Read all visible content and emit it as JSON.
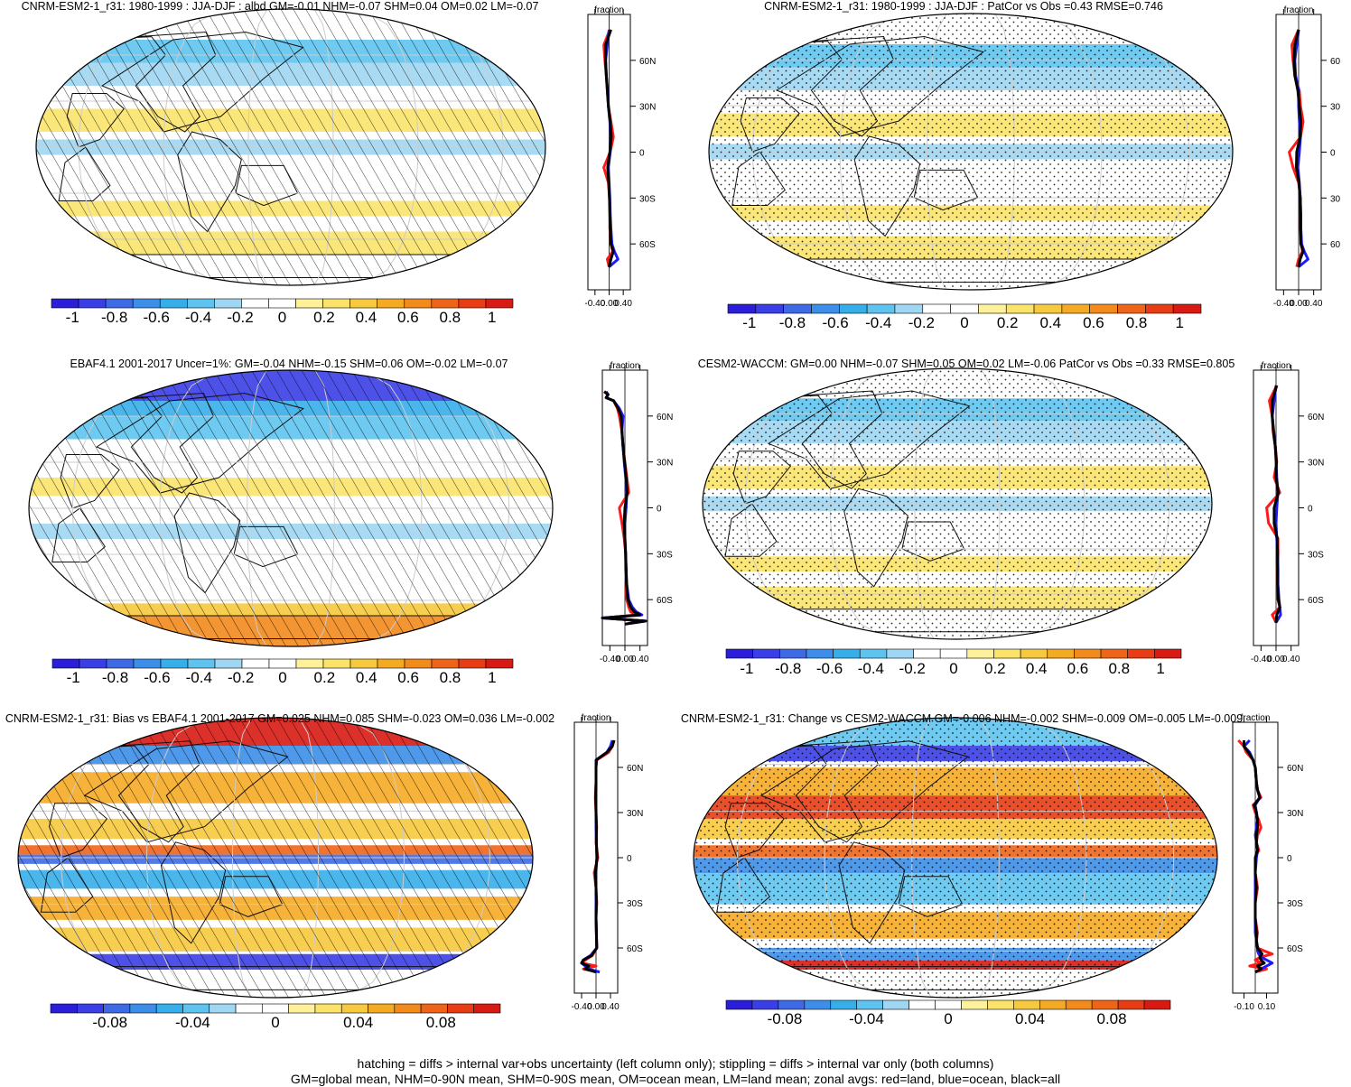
{
  "figure": {
    "footer_line1": "hatching = diffs > internal var+obs uncertainty (left column only); stippling = diffs > internal var only (both columns)",
    "footer_line2": "GM=global mean, NHM=0-90N mean, SHM=0-90S mean, OM=ocean mean, LM=land mean; zonal avgs: red=land, blue=ocean, black=all"
  },
  "colors": {
    "land": "#ff1a1a",
    "ocean": "#1a1aff",
    "all": "#000000",
    "colormap": [
      "#2a1ed8",
      "#3a3ee6",
      "#3f6ae6",
      "#3c8ee8",
      "#36aeea",
      "#5ec4ef",
      "#9fd7f2",
      "#ffffff",
      "#ffffff",
      "#fff09a",
      "#fbe36a",
      "#f7c93e",
      "#f5aa23",
      "#f28a1c",
      "#ee6418",
      "#e83c14",
      "#d81a14"
    ]
  },
  "chart_data": [
    {
      "type": "map+zonal",
      "id": "p1",
      "title": "CNRM-ESM2-1_r31: 1980-1999 : JJA-DJF : albd GM=-0.01 NHM=-0.07 SHM=0.04 OM=0.02 LM=-0.07",
      "pattern": "hatch",
      "map_style": "weak",
      "zonal_label": "fraction",
      "zonal_xlim": [
        -0.6,
        0.6
      ],
      "zonal_xticks": [
        "-0.40",
        "0.00",
        "0.40"
      ],
      "lat_ticks": [
        "60N",
        "30N",
        "0",
        "30S",
        "60S"
      ],
      "zonal": {
        "lat": [
          80,
          70,
          60,
          50,
          40,
          30,
          20,
          10,
          0,
          -10,
          -20,
          -30,
          -40,
          -50,
          -60,
          -65,
          -70,
          -75
        ],
        "land": [
          0.02,
          -0.15,
          -0.12,
          -0.08,
          -0.05,
          -0.02,
          0.05,
          0.12,
          0.03,
          -0.15,
          -0.02,
          0.01,
          0.02,
          0.02,
          0.05,
          0.1,
          -0.05,
          0.0
        ],
        "ocean": [
          0.0,
          -0.05,
          -0.1,
          -0.08,
          -0.04,
          -0.02,
          0.02,
          0.05,
          0.03,
          -0.02,
          0.0,
          0.02,
          0.03,
          0.05,
          0.08,
          0.15,
          0.25,
          0.0
        ],
        "all": [
          0.05,
          -0.1,
          -0.1,
          -0.08,
          -0.05,
          -0.02,
          0.03,
          0.06,
          0.02,
          -0.04,
          -0.01,
          0.01,
          0.02,
          0.03,
          0.05,
          0.12,
          0.05,
          0.0
        ]
      },
      "colorbar_ticks": [
        "-1",
        "-0.8",
        "-0.6",
        "-0.4",
        "-0.2",
        "0",
        "0.2",
        "0.4",
        "0.6",
        "0.8",
        "1"
      ]
    },
    {
      "type": "map+zonal",
      "id": "p2",
      "title": "CNRM-ESM2-1_r31: 1980-1999 : JJA-DJF : PatCor vs Obs =0.43 RMSE=0.746",
      "pattern": "stipple",
      "map_style": "weak",
      "zonal_label": "fraction",
      "zonal_xlim": [
        -0.6,
        0.6
      ],
      "zonal_xticks": [
        "-0.40",
        "0.00",
        "0.40"
      ],
      "lat_ticks": [
        "60",
        "30",
        "0",
        "30",
        "60"
      ],
      "zonal": {
        "lat": [
          80,
          70,
          60,
          50,
          40,
          30,
          20,
          10,
          0,
          -10,
          -20,
          -30,
          -40,
          -50,
          -60,
          -65,
          -70,
          -75
        ],
        "land": [
          0.0,
          -0.18,
          -0.15,
          -0.1,
          0.02,
          0.05,
          0.12,
          0.05,
          -0.25,
          -0.15,
          0.0,
          0.05,
          0.05,
          0.05,
          0.08,
          0.1,
          0.0,
          -0.05
        ],
        "ocean": [
          0.0,
          -0.05,
          -0.1,
          -0.08,
          0.0,
          0.0,
          0.02,
          0.05,
          0.02,
          -0.02,
          0.02,
          0.04,
          0.06,
          0.06,
          0.08,
          0.15,
          0.25,
          0.0
        ],
        "all": [
          0.0,
          -0.1,
          -0.12,
          -0.1,
          -0.02,
          0.02,
          0.06,
          0.04,
          -0.05,
          -0.06,
          0.01,
          0.04,
          0.05,
          0.05,
          0.06,
          0.12,
          0.04,
          0.0
        ]
      },
      "colorbar_ticks": [
        "-1",
        "-0.8",
        "-0.6",
        "-0.4",
        "-0.2",
        "0",
        "0.2",
        "0.4",
        "0.6",
        "0.8",
        "1"
      ]
    },
    {
      "type": "map+zonal",
      "id": "p3",
      "title": "EBAF4.1 2001-2017 Uncer=1%: GM=-0.04 NHM=-0.15 SHM=0.06 OM=-0.02 LM=-0.07",
      "pattern": "hatch",
      "map_style": "obs",
      "zonal_label": "fraction",
      "zonal_xlim": [
        -0.6,
        0.6
      ],
      "zonal_xticks": [
        "-0.40",
        "0.00",
        "0.40"
      ],
      "lat_ticks": [
        "60N",
        "30N",
        "0",
        "30S",
        "60S"
      ],
      "zonal": {
        "lat": [
          76,
          74,
          72,
          70,
          65,
          60,
          50,
          40,
          30,
          20,
          10,
          0,
          -10,
          -20,
          -30,
          -40,
          -50,
          -60,
          -65,
          -68,
          -70,
          -72,
          -74,
          -76
        ],
        "land": [
          -0.55,
          -0.45,
          -0.5,
          -0.3,
          -0.2,
          -0.15,
          -0.08,
          -0.05,
          0.0,
          0.05,
          0.1,
          -0.15,
          -0.08,
          -0.02,
          0.02,
          0.02,
          0.03,
          0.05,
          0.1,
          0.15,
          0.3,
          -0.55,
          0.5,
          0.0
        ],
        "ocean": [
          -0.5,
          -0.45,
          -0.5,
          -0.3,
          -0.15,
          -0.05,
          -0.08,
          -0.05,
          -0.02,
          0.02,
          0.05,
          0.03,
          0.0,
          0.0,
          0.02,
          0.03,
          0.05,
          0.1,
          0.2,
          0.3,
          0.45,
          -0.6,
          0.55,
          0.0
        ],
        "all": [
          -0.55,
          -0.45,
          -0.5,
          -0.3,
          -0.18,
          -0.1,
          -0.08,
          -0.05,
          -0.01,
          0.03,
          0.06,
          0.0,
          -0.02,
          0.0,
          0.02,
          0.03,
          0.04,
          0.08,
          0.15,
          0.25,
          0.4,
          -0.6,
          0.55,
          0.0
        ]
      },
      "colorbar_ticks": [
        "-1",
        "-0.8",
        "-0.6",
        "-0.4",
        "-0.2",
        "0",
        "0.2",
        "0.4",
        "0.6",
        "0.8",
        "1"
      ]
    },
    {
      "type": "map+zonal",
      "id": "p4",
      "title": "CESM2-WACCM: GM=0.00 NHM=-0.07 SHM=0.05 OM=0.02 LM=-0.06 PatCor vs Obs =0.33 RMSE=0.805",
      "pattern": "stipple",
      "map_style": "weak",
      "zonal_label": "fraction",
      "zonal_xlim": [
        -0.6,
        0.6
      ],
      "zonal_xticks": [
        "-0.40",
        "0.00",
        "0.40"
      ],
      "lat_ticks": [
        "60N",
        "30N",
        "0",
        "30S",
        "60S"
      ],
      "zonal": {
        "lat": [
          80,
          70,
          60,
          50,
          40,
          30,
          20,
          10,
          0,
          -10,
          -20,
          -30,
          -40,
          -50,
          -60,
          -65,
          -70,
          -75
        ],
        "land": [
          0.02,
          -0.18,
          -0.1,
          -0.08,
          -0.02,
          0.02,
          -0.05,
          0.1,
          -0.25,
          -0.2,
          0.05,
          0.05,
          0.03,
          0.03,
          0.05,
          0.1,
          -0.1,
          0.0
        ],
        "ocean": [
          0.0,
          -0.05,
          -0.1,
          -0.06,
          -0.02,
          0.0,
          0.02,
          0.05,
          0.02,
          0.0,
          0.02,
          0.04,
          0.05,
          0.05,
          0.08,
          0.1,
          0.12,
          0.0
        ],
        "all": [
          0.02,
          -0.1,
          -0.1,
          -0.07,
          -0.02,
          0.01,
          0.0,
          0.06,
          -0.05,
          -0.05,
          0.03,
          0.04,
          0.04,
          0.04,
          0.06,
          0.1,
          0.02,
          0.0
        ]
      },
      "colorbar_ticks": [
        "-1",
        "-0.8",
        "-0.6",
        "-0.4",
        "-0.2",
        "0",
        "0.2",
        "0.4",
        "0.6",
        "0.8",
        "1"
      ]
    },
    {
      "type": "map+zonal",
      "id": "p5",
      "title": "CNRM-ESM2-1_r31: Bias vs EBAF4.1 2001-2017 GM=0.025 NHM=0.085 SHM=-0.023 OM=0.036 LM=-0.002",
      "pattern": "hatch",
      "map_style": "bias",
      "zonal_label": "fraction",
      "zonal_xlim": [
        -0.6,
        0.6
      ],
      "zonal_xticks": [
        "-0.40",
        "0.00",
        "0.40"
      ],
      "lat_ticks": [
        "60N",
        "30N",
        "0",
        "30S",
        "60S"
      ],
      "zonal": {
        "lat": [
          78,
          74,
          70,
          65,
          60,
          50,
          40,
          30,
          20,
          10,
          0,
          -10,
          -20,
          -30,
          -40,
          -50,
          -60,
          -65,
          -68,
          -70,
          -72,
          -74,
          -76
        ],
        "land": [
          0.5,
          0.45,
          0.35,
          0.02,
          0.0,
          0.0,
          -0.02,
          0.0,
          0.02,
          0.0,
          0.05,
          -0.05,
          0.0,
          0.02,
          0.0,
          0.01,
          0.02,
          -0.1,
          -0.3,
          -0.4,
          0.0,
          -0.35,
          0.1
        ],
        "ocean": [
          0.45,
          0.4,
          0.3,
          0.0,
          0.0,
          0.0,
          0.0,
          0.0,
          0.0,
          0.01,
          0.02,
          0.0,
          0.0,
          0.0,
          0.0,
          0.01,
          0.02,
          -0.15,
          -0.35,
          -0.4,
          -0.3,
          -0.2,
          0.1
        ],
        "all": [
          0.5,
          0.45,
          0.3,
          0.01,
          0.0,
          0.0,
          -0.01,
          0.0,
          0.01,
          0.01,
          0.03,
          -0.02,
          0.0,
          0.01,
          0.0,
          0.01,
          0.02,
          -0.12,
          -0.35,
          -0.4,
          -0.2,
          -0.3,
          0.0
        ]
      },
      "colorbar_ticks": [
        "-0.08",
        "-0.04",
        "0",
        "0.04",
        "0.08"
      ]
    },
    {
      "type": "map+zonal",
      "id": "p6",
      "title": "CNRM-ESM2-1_r31: Change vs CESM2-WACCM GM=-0.006 NHM=-0.002 SHM=-0.009 OM=-0.005 LM=-0.009",
      "pattern": "stipple",
      "map_style": "change",
      "zonal_label": "fraction",
      "zonal_xlim": [
        -0.2,
        0.2
      ],
      "zonal_xticks": [
        "-0.10",
        "0.10"
      ],
      "lat_ticks": [
        "60N",
        "30N",
        "0",
        "30S",
        "60S"
      ],
      "zonal": {
        "lat": [
          78,
          74,
          70,
          65,
          60,
          50,
          45,
          40,
          35,
          30,
          25,
          20,
          15,
          10,
          5,
          0,
          -10,
          -20,
          -30,
          -40,
          -50,
          -55,
          -60,
          -62,
          -64,
          -66,
          -68,
          -70,
          -72,
          -74,
          -76
        ],
        "land": [
          -0.15,
          -0.1,
          -0.08,
          -0.02,
          0.0,
          0.01,
          0.02,
          0.05,
          -0.02,
          0.0,
          0.03,
          0.05,
          0.02,
          0.01,
          0.03,
          0.0,
          0.0,
          0.02,
          0.0,
          0.0,
          0.02,
          0.01,
          0.02,
          0.08,
          0.15,
          0.05,
          0.0,
          0.05,
          -0.05,
          0.1,
          0.0
        ],
        "ocean": [
          -0.05,
          -0.1,
          -0.05,
          -0.02,
          0.0,
          0.01,
          0.02,
          0.04,
          0.0,
          0.01,
          0.02,
          0.01,
          0.0,
          0.01,
          0.02,
          0.01,
          0.0,
          0.0,
          0.0,
          0.0,
          0.0,
          0.01,
          0.02,
          0.02,
          0.03,
          0.05,
          0.1,
          0.15,
          0.1,
          0.05,
          0.0
        ],
        "all": [
          -0.1,
          -0.1,
          -0.06,
          -0.02,
          0.0,
          0.01,
          0.02,
          0.04,
          -0.01,
          0.01,
          0.02,
          0.02,
          0.01,
          0.01,
          0.02,
          0.0,
          0.0,
          0.01,
          0.0,
          0.0,
          0.01,
          0.01,
          0.02,
          0.04,
          0.06,
          0.04,
          0.05,
          0.08,
          0.02,
          0.05,
          0.0
        ]
      },
      "colorbar_ticks": [
        "-0.08",
        "-0.04",
        "0",
        "0.04",
        "0.08"
      ]
    }
  ]
}
